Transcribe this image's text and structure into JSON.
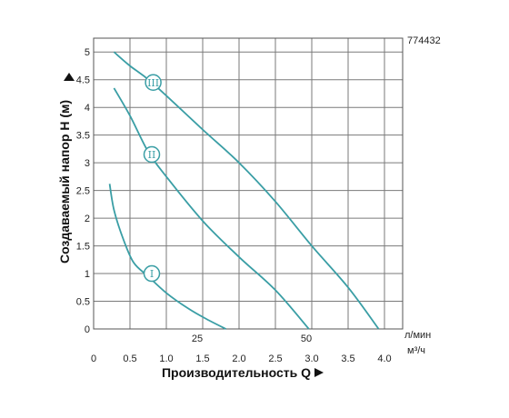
{
  "chart_data": {
    "type": "line",
    "code": "774432",
    "ylabel": "Создаваемый напор Н (м)",
    "xlabel": "Производительность Q",
    "x_unit": "м³/ч",
    "x2_unit": "л/мин",
    "xlim": [
      0,
      4.25
    ],
    "ylim": [
      0,
      5.25
    ],
    "x_ticks": [
      "0",
      "0.5",
      "1.0",
      "1.5",
      "2.0",
      "2.5",
      "3.0",
      "3.5",
      "4.0"
    ],
    "x2_ticks": [
      {
        "label": "25",
        "x": 1.5
      },
      {
        "label": "50",
        "x": 3.0
      }
    ],
    "y_ticks": [
      "0",
      "0.5",
      "1",
      "1.5",
      "2",
      "2.5",
      "3",
      "3.5",
      "4",
      "4.5",
      "5"
    ],
    "grid": true,
    "series": [
      {
        "name": "I",
        "points": [
          [
            0.22,
            2.62
          ],
          [
            0.28,
            2.15
          ],
          [
            0.4,
            1.65
          ],
          [
            0.55,
            1.2
          ],
          [
            0.75,
            0.95
          ],
          [
            1.0,
            0.65
          ],
          [
            1.3,
            0.37
          ],
          [
            1.55,
            0.18
          ],
          [
            1.82,
            0.0
          ]
        ],
        "label_at": [
          0.8,
          1.0
        ]
      },
      {
        "name": "II",
        "points": [
          [
            0.28,
            4.35
          ],
          [
            0.5,
            3.85
          ],
          [
            0.75,
            3.2
          ],
          [
            1.0,
            2.75
          ],
          [
            1.5,
            1.95
          ],
          [
            2.0,
            1.3
          ],
          [
            2.5,
            0.7
          ],
          [
            2.96,
            0.0
          ]
        ],
        "label_at": [
          0.8,
          3.15
        ]
      },
      {
        "name": "III",
        "points": [
          [
            0.28,
            5.0
          ],
          [
            0.5,
            4.75
          ],
          [
            0.8,
            4.45
          ],
          [
            1.5,
            3.6
          ],
          [
            2.0,
            3.0
          ],
          [
            2.5,
            2.3
          ],
          [
            3.0,
            1.5
          ],
          [
            3.5,
            0.75
          ],
          [
            3.92,
            0.0
          ]
        ],
        "label_at": [
          0.82,
          4.45
        ]
      }
    ]
  }
}
